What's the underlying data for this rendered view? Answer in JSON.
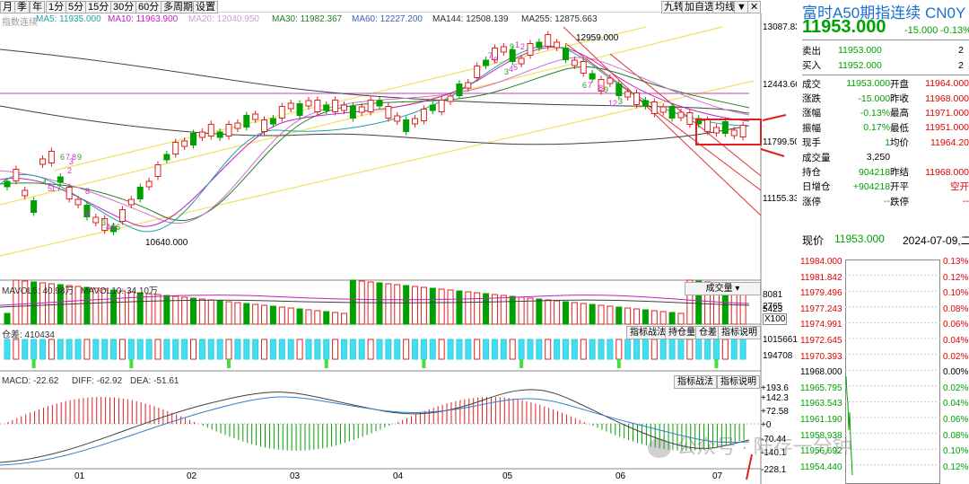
{
  "toolbar": {
    "tabs": [
      "月",
      "季",
      "年",
      "1分",
      "5分",
      "15分",
      "30分",
      "60分",
      "多周期",
      "设置"
    ],
    "right_buttons": [
      "九转",
      "加自选",
      "均线"
    ],
    "more_icon": "more-icon",
    "close_icon": "close-icon"
  },
  "ma_legend": {
    "name": "指数连续",
    "items": [
      {
        "label": "MA5: 11935.000",
        "color": "#20a0a0"
      },
      {
        "label": "MA10: 11963.900",
        "color": "#c020c0"
      },
      {
        "label": "MA20: 12040.950",
        "color": "#d0a0d0"
      },
      {
        "label": "MA30: 11982.367",
        "color": "#208020"
      },
      {
        "label": "MA60: 12227.200",
        "color": "#4060c0"
      },
      {
        "label": "MA144: 12508.139",
        "color": "#303030"
      },
      {
        "label": "MA255: 12875.663",
        "color": "#303030"
      }
    ]
  },
  "price_axis": [
    "13087.83",
    "12443.66",
    "11799.50",
    "11155.33"
  ],
  "annotations": {
    "high": "12959.000",
    "low": "10640.000"
  },
  "td_labels": [
    "6",
    "7",
    "8",
    "9",
    "2",
    "3",
    "4",
    "5",
    "1",
    "7",
    "8",
    "9",
    "3",
    "4",
    "5",
    "6",
    "7",
    "8",
    "9",
    "1",
    "2",
    "3",
    "4",
    "5",
    "6",
    "7",
    "8",
    "9",
    "1",
    "2",
    "3",
    "4",
    "5",
    "6",
    "7",
    "8",
    "9",
    "2",
    "3",
    "4",
    "5",
    "7",
    "8",
    "9"
  ],
  "volume": {
    "legend_a": "MAVOL5: 40.98万",
    "legend_b": "MAVOL10: 34.10万",
    "selector": "成交量",
    "axis": [
      "8081",
      "5423",
      "2765",
      "X100"
    ]
  },
  "oi": {
    "legend": "仓差: 410434",
    "axis": [
      "1015661",
      "194708"
    ],
    "buttons": [
      "指标战法",
      "持仓量",
      "仓差",
      "指标说明"
    ]
  },
  "macd": {
    "legend_a": "MACD: -22.62",
    "legend_b": "DIFF: -62.92",
    "legend_c": "DEA: -51.61",
    "axis": [
      "+193.6",
      "+142.3",
      "+72.58",
      "+0",
      "-70.44",
      "-140.1",
      "-228.1"
    ],
    "buttons": [
      "指标战法",
      "指标说明"
    ]
  },
  "months": [
    "01",
    "02",
    "03",
    "04",
    "05",
    "06",
    "07"
  ],
  "watermark": "公众号 · 陆存一分钟",
  "quote": {
    "title": "富时A50期指连续 CN0Y",
    "price": "11953.000",
    "change": "-15.000",
    "pct": "-0.13%",
    "ask": {
      "label": "卖出",
      "price": "11953.000",
      "vol": "2"
    },
    "bid": {
      "label": "买入",
      "price": "11952.000",
      "vol": "2"
    },
    "rows": [
      [
        "成交",
        "11953.000",
        "开盘",
        "11964.000"
      ],
      [
        "涨跌",
        "-15.000",
        "昨收",
        "11968.000"
      ],
      [
        "涨幅",
        "-0.13%",
        "最高",
        "11971.000"
      ],
      [
        "振幅",
        "0.17%",
        "最低",
        "11951.000"
      ],
      [
        "现手",
        "1",
        "均价",
        "11964.20"
      ],
      [
        "成交量",
        "3,250",
        "",
        ""
      ],
      [
        "持仓",
        "904218",
        "昨结",
        "11968.000"
      ],
      [
        "日增仓",
        "+904218",
        "开平",
        "空开"
      ],
      [
        "涨停",
        "--",
        "跌停",
        "--"
      ]
    ]
  },
  "intraday": {
    "label": "现价",
    "price": "11953.000",
    "datetime": "2024-07-09,二",
    "left_axis": [
      "11984.000",
      "11981.842",
      "11979.496",
      "11977.243",
      "11974.991",
      "11972.645",
      "11970.393",
      "11968.000",
      "11965.795",
      "11963.543",
      "11961.190",
      "11958.938",
      "11956.692",
      "11954.440"
    ],
    "right_axis": [
      "0.13%",
      "0.12%",
      "0.10%",
      "0.08%",
      "0.06%",
      "0.04%",
      "0.02%",
      "0.00%",
      "0.02%",
      "0.04%",
      "0.06%",
      "0.08%",
      "0.10%",
      "0.12%"
    ]
  }
}
